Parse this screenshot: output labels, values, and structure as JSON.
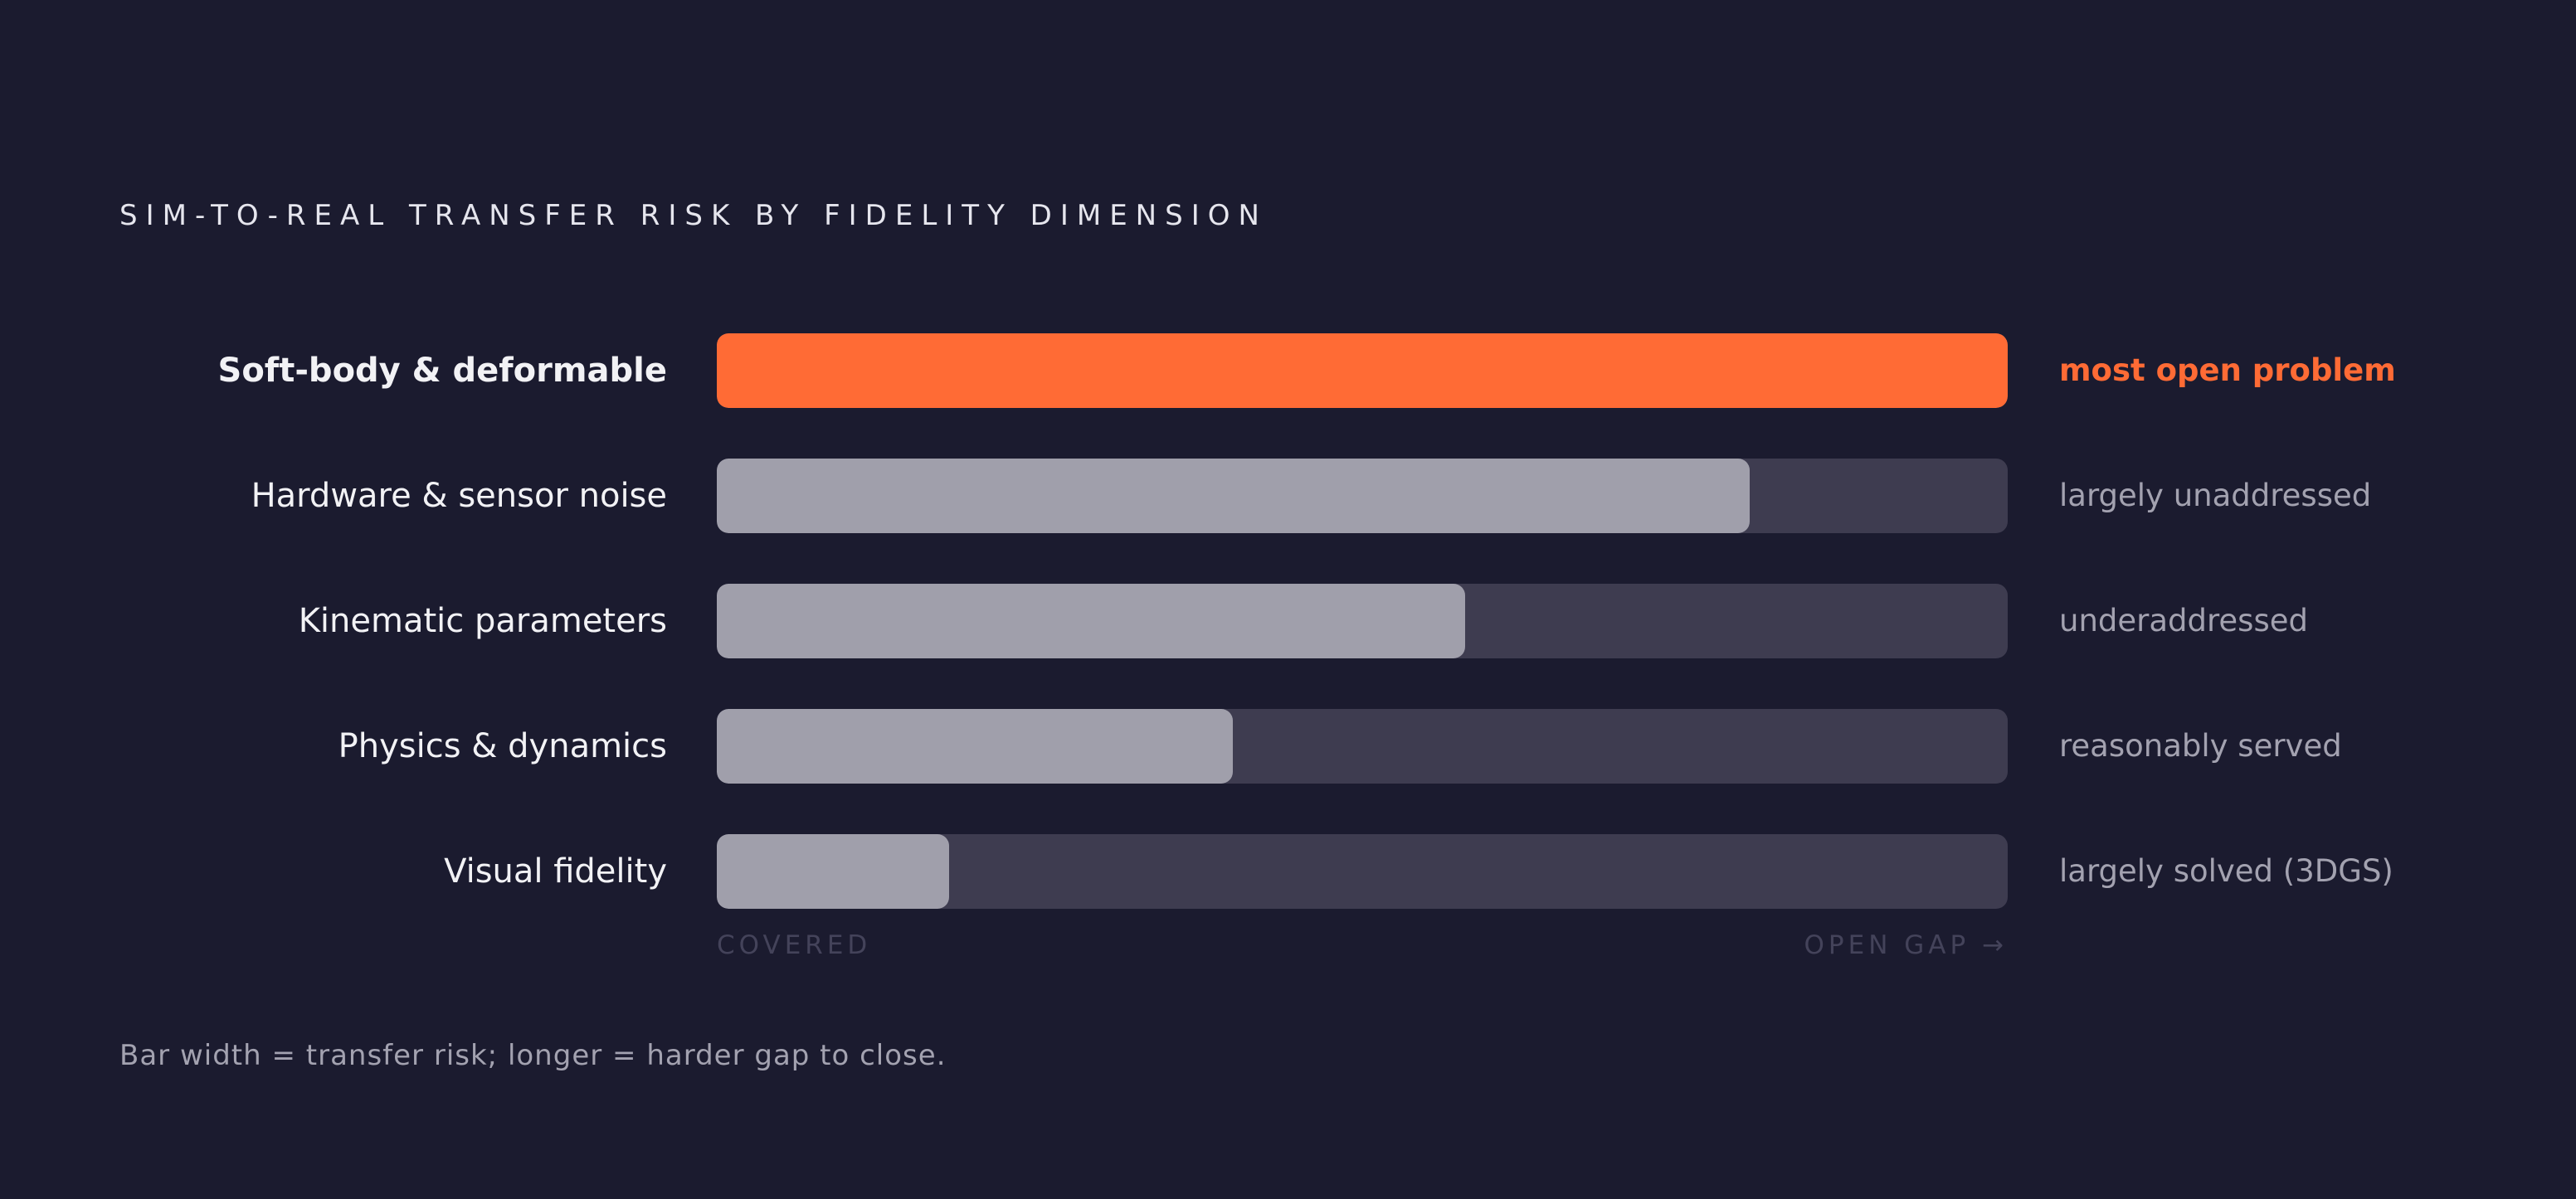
{
  "chart_data": {
    "type": "bar",
    "orientation": "horizontal",
    "title": "SIM-TO-REAL TRANSFER RISK BY FIDELITY DIMENSION",
    "categories": [
      "Soft-body & deformable",
      "Hardware & sensor noise",
      "Kinematic parameters",
      "Physics & dynamics",
      "Visual fidelity"
    ],
    "values": [
      1.0,
      0.8,
      0.58,
      0.4,
      0.18
    ],
    "value_annotations": [
      "most open problem",
      "largely unaddressed",
      "underaddressed",
      "reasonably served",
      "largely solved (3DGS)"
    ],
    "highlighted_category": "Soft-body & deformable",
    "xlim": [
      0,
      1
    ],
    "axis_start_label": "COVERED",
    "axis_end_label": "OPEN GAP →",
    "caption": "Bar width = transfer risk; longer = harder gap to close.",
    "grid": false,
    "colors": {
      "highlight": "#ff6b35",
      "bar": "#a09fab",
      "track": "#3e3c50",
      "background": "#1b1b2f"
    }
  }
}
